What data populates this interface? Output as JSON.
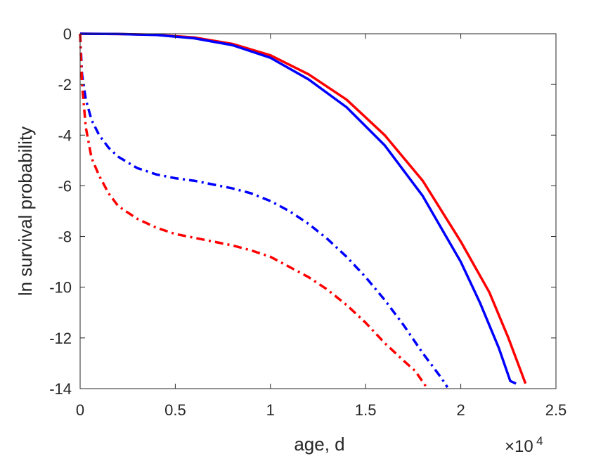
{
  "chart_data": {
    "type": "line",
    "title": "",
    "xlabel": "age, d",
    "ylabel": "ln survival probability",
    "xlim": [
      0,
      25000
    ],
    "ylim": [
      -14,
      0
    ],
    "x_ticks": [
      0,
      5000,
      10000,
      15000,
      20000,
      25000
    ],
    "x_tick_labels": [
      "0",
      "0.5",
      "1",
      "1.5",
      "2",
      "2.5"
    ],
    "x_exponent": {
      "base": "×10",
      "power": "4"
    },
    "y_ticks": [
      0,
      -2,
      -4,
      -6,
      -8,
      -10,
      -12,
      -14
    ],
    "y_tick_labels": [
      "0",
      "-2",
      "-4",
      "-6",
      "-8",
      "-10",
      "-12",
      "-14"
    ],
    "grid": false,
    "legend": "none",
    "series": [
      {
        "color": "#ff0000",
        "style": "solid",
        "points": [
          [
            0,
            0
          ],
          [
            2000,
            -0.01
          ],
          [
            4000,
            -0.04
          ],
          [
            6000,
            -0.15
          ],
          [
            8000,
            -0.4
          ],
          [
            10000,
            -0.85
          ],
          [
            12000,
            -1.6
          ],
          [
            14000,
            -2.6
          ],
          [
            16000,
            -4.0
          ],
          [
            18000,
            -5.8
          ],
          [
            20000,
            -8.2
          ],
          [
            21500,
            -10.2
          ],
          [
            22500,
            -12.0
          ],
          [
            23000,
            -13.0
          ],
          [
            23400,
            -13.8
          ]
        ]
      },
      {
        "color": "#0000ff",
        "style": "solid",
        "points": [
          [
            0,
            0
          ],
          [
            2000,
            -0.01
          ],
          [
            4000,
            -0.05
          ],
          [
            6000,
            -0.18
          ],
          [
            8000,
            -0.45
          ],
          [
            10000,
            -0.95
          ],
          [
            12000,
            -1.8
          ],
          [
            14000,
            -2.9
          ],
          [
            16000,
            -4.4
          ],
          [
            18000,
            -6.4
          ],
          [
            20000,
            -9.0
          ],
          [
            21000,
            -10.6
          ],
          [
            22000,
            -12.4
          ],
          [
            22600,
            -13.7
          ],
          [
            22900,
            -13.8
          ]
        ]
      },
      {
        "color": "#0000ff",
        "style": "dashdot",
        "points": [
          [
            0,
            0
          ],
          [
            100,
            -1.6
          ],
          [
            300,
            -2.6
          ],
          [
            600,
            -3.4
          ],
          [
            1000,
            -4.0
          ],
          [
            1500,
            -4.5
          ],
          [
            2000,
            -4.85
          ],
          [
            3000,
            -5.3
          ],
          [
            4000,
            -5.55
          ],
          [
            5000,
            -5.7
          ],
          [
            6000,
            -5.8
          ],
          [
            7000,
            -5.95
          ],
          [
            8000,
            -6.1
          ],
          [
            9000,
            -6.3
          ],
          [
            10000,
            -6.6
          ],
          [
            11000,
            -7.0
          ],
          [
            12000,
            -7.5
          ],
          [
            13000,
            -8.1
          ],
          [
            14000,
            -8.8
          ],
          [
            15000,
            -9.6
          ],
          [
            16000,
            -10.5
          ],
          [
            17000,
            -11.5
          ],
          [
            18000,
            -12.6
          ],
          [
            19000,
            -13.6
          ],
          [
            19300,
            -13.95
          ]
        ]
      },
      {
        "color": "#ff0000",
        "style": "dashdot",
        "points": [
          [
            0,
            0
          ],
          [
            100,
            -2.0
          ],
          [
            300,
            -3.7
          ],
          [
            600,
            -4.9
          ],
          [
            1000,
            -5.6
          ],
          [
            1500,
            -6.3
          ],
          [
            2000,
            -6.8
          ],
          [
            3000,
            -7.3
          ],
          [
            4000,
            -7.65
          ],
          [
            5000,
            -7.9
          ],
          [
            6000,
            -8.05
          ],
          [
            7000,
            -8.2
          ],
          [
            8000,
            -8.35
          ],
          [
            9000,
            -8.55
          ],
          [
            10000,
            -8.8
          ],
          [
            11000,
            -9.2
          ],
          [
            12000,
            -9.6
          ],
          [
            13000,
            -10.1
          ],
          [
            14000,
            -10.7
          ],
          [
            15000,
            -11.4
          ],
          [
            16000,
            -12.2
          ],
          [
            17000,
            -12.9
          ],
          [
            17600,
            -13.3
          ],
          [
            18200,
            -13.95
          ]
        ]
      }
    ]
  }
}
